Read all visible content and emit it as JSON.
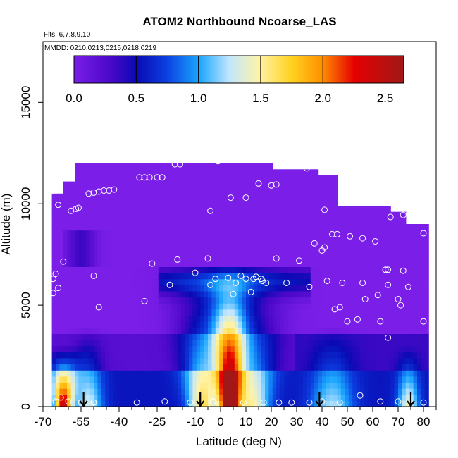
{
  "chart_data": {
    "type": "heatmap",
    "title": "ATOM2 Northbound Ncoarse_LAS",
    "flights_note": "Flts: 6,7,8,9,10",
    "dates_note": "MMDD: 0210,0213,0215,0218,0219",
    "xlabel": "Latitude (deg N)",
    "ylabel": "Altitude (m)",
    "xlim": [
      -70,
      85
    ],
    "ylim": [
      0,
      18000
    ],
    "xticks": [
      -70,
      -55,
      -40,
      -25,
      -10,
      0,
      10,
      20,
      30,
      40,
      50,
      60,
      70,
      80
    ],
    "yticks": [
      0,
      5000,
      10000,
      15000
    ],
    "colorbar": {
      "range": [
        0,
        2.65
      ],
      "ticks": [
        0.0,
        0.5,
        1.0,
        1.5,
        2.0,
        2.5
      ],
      "tick_labels": [
        "0.0",
        "0.5",
        "1.0",
        "1.5",
        "2.0",
        "2.5"
      ],
      "colors": [
        "#7a1ee8",
        "#0a0ab4",
        "#0b3fe0",
        "#1aa6ff",
        "#d9f1ff",
        "#fff3a8",
        "#ffd21f",
        "#ff7b00",
        "#e10000",
        "#a01818"
      ]
    },
    "profile_arrows_lat": [
      -54,
      -8,
      39,
      75
    ],
    "sample_points": [
      [
        -68,
        200
      ],
      [
        -65,
        250
      ],
      [
        -63,
        450
      ],
      [
        -60,
        250
      ],
      [
        -55,
        200
      ],
      [
        -50,
        200
      ],
      [
        -33,
        200
      ],
      [
        -22,
        250
      ],
      [
        -12,
        200
      ],
      [
        -3,
        250
      ],
      [
        9,
        200
      ],
      [
        17,
        200
      ],
      [
        23,
        200
      ],
      [
        28,
        200
      ],
      [
        35,
        200
      ],
      [
        40,
        250
      ],
      [
        47,
        200
      ],
      [
        55,
        550
      ],
      [
        63,
        250
      ],
      [
        70,
        250
      ],
      [
        80,
        200
      ],
      [
        -68,
        5000
      ],
      [
        -66,
        5600
      ],
      [
        -64,
        5850
      ],
      [
        -66,
        6300
      ],
      [
        -65,
        6550
      ],
      [
        -62,
        7150
      ],
      [
        -50,
        6450
      ],
      [
        -48,
        4900
      ],
      [
        -30,
        5200
      ],
      [
        -27,
        7050
      ],
      [
        -20,
        6000
      ],
      [
        -17,
        7250
      ],
      [
        -10,
        6600
      ],
      [
        -5,
        7300
      ],
      [
        -4,
        6000
      ],
      [
        -2,
        6300
      ],
      [
        3,
        6350
      ],
      [
        5,
        5550
      ],
      [
        6,
        6100
      ],
      [
        8,
        6450
      ],
      [
        10,
        6300
      ],
      [
        12,
        5650
      ],
      [
        13,
        6300
      ],
      [
        14,
        6400
      ],
      [
        16,
        6300
      ],
      [
        16.5,
        6200
      ],
      [
        18,
        6100
      ],
      [
        22,
        7300
      ],
      [
        26,
        6100
      ],
      [
        31,
        7200
      ],
      [
        35,
        5900
      ],
      [
        40,
        7700
      ],
      [
        42,
        6200
      ],
      [
        45,
        4800
      ],
      [
        47,
        4900
      ],
      [
        48,
        6100
      ],
      [
        50,
        4200
      ],
      [
        54,
        4300
      ],
      [
        56,
        6100
      ],
      [
        57,
        5300
      ],
      [
        62,
        5500
      ],
      [
        63,
        4200
      ],
      [
        65,
        6750
      ],
      [
        66,
        6750
      ],
      [
        66,
        3400
      ],
      [
        66,
        6000
      ],
      [
        70,
        5300
      ],
      [
        71,
        5000
      ],
      [
        72,
        6700
      ],
      [
        74,
        5900
      ],
      [
        80,
        4200
      ],
      [
        -68,
        9200
      ],
      [
        -64,
        9950
      ],
      [
        -66,
        10650
      ],
      [
        -65,
        11300
      ],
      [
        -63,
        11900
      ],
      [
        -59,
        9650
      ],
      [
        -57,
        9750
      ],
      [
        -56,
        9800
      ],
      [
        -52,
        10500
      ],
      [
        -50,
        10550
      ],
      [
        -48,
        10600
      ],
      [
        -46,
        10650
      ],
      [
        -44,
        10650
      ],
      [
        -42,
        10700
      ],
      [
        -32,
        11300
      ],
      [
        -30,
        11300
      ],
      [
        -28,
        11300
      ],
      [
        -25,
        11300
      ],
      [
        -23,
        11300
      ],
      [
        -18,
        11950
      ],
      [
        -16,
        11950
      ],
      [
        -4,
        9650
      ],
      [
        -1,
        12100
      ],
      [
        4,
        10300
      ],
      [
        10,
        10300
      ],
      [
        15,
        11000
      ],
      [
        20,
        10900
      ],
      [
        22,
        10950
      ],
      [
        34,
        11750
      ],
      [
        40,
        11650
      ],
      [
        46,
        11950
      ],
      [
        37,
        8050
      ],
      [
        41,
        9700
      ],
      [
        41,
        7850
      ],
      [
        44,
        8500
      ],
      [
        46,
        8500
      ],
      [
        51,
        8400
      ],
      [
        56,
        8300
      ],
      [
        61,
        8150
      ],
      [
        67,
        9350
      ],
      [
        72,
        9450
      ],
      [
        80,
        8550
      ]
    ]
  }
}
